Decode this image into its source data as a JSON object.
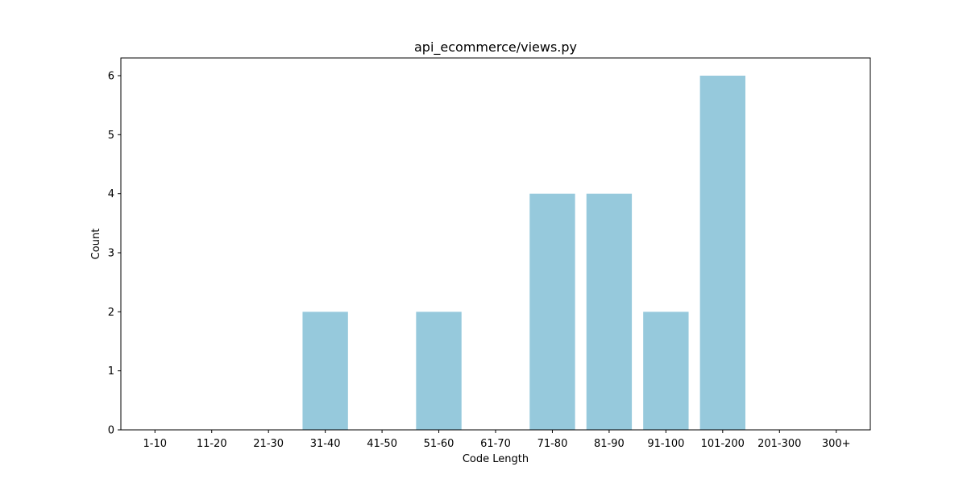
{
  "chart_data": {
    "type": "bar",
    "title": "api_ecommerce/views.py",
    "xlabel": "Code Length",
    "ylabel": "Count",
    "categories": [
      "1-10",
      "11-20",
      "21-30",
      "31-40",
      "41-50",
      "51-60",
      "61-70",
      "71-80",
      "81-90",
      "91-100",
      "101-200",
      "201-300",
      "300+"
    ],
    "values": [
      0,
      0,
      0,
      2,
      0,
      2,
      0,
      4,
      4,
      2,
      6,
      0,
      0
    ],
    "ylim": [
      0,
      6.3
    ],
    "yticks": [
      0,
      1,
      2,
      3,
      4,
      5,
      6
    ],
    "bar_color": "#96c9dc",
    "grid": false,
    "legend": "none"
  }
}
